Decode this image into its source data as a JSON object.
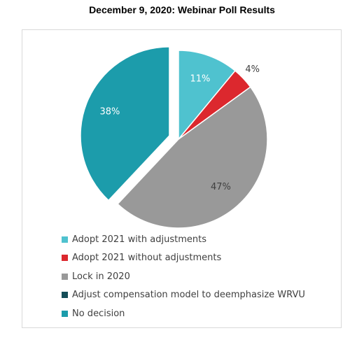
{
  "chart_data": {
    "type": "pie",
    "title": "December 9, 2020: Webinar Poll Results",
    "legend_position": "bottom-left",
    "slices": [
      {
        "name": "Adopt 2021 with adjustments",
        "value": 11,
        "label": "11%",
        "color": "#4fc2cf",
        "label_color": "#ffffff",
        "exploded": false
      },
      {
        "name": "Adopt 2021 without adjustments",
        "value": 4,
        "label": "4%",
        "color": "#dc282e",
        "label_color": "#404040",
        "exploded": false
      },
      {
        "name": "Lock in 2020",
        "value": 47,
        "label": "47%",
        "color": "#999999",
        "label_color": "#404040",
        "exploded": false
      },
      {
        "name": "Adjust compensation model to deemphasize WRVU",
        "value": 0,
        "label": "",
        "color": "#144d58",
        "label_color": "#404040",
        "exploded": false
      },
      {
        "name": "No decision",
        "value": 38,
        "label": "38%",
        "color": "#1c9cab",
        "label_color": "#ffffff",
        "exploded": true
      }
    ]
  }
}
